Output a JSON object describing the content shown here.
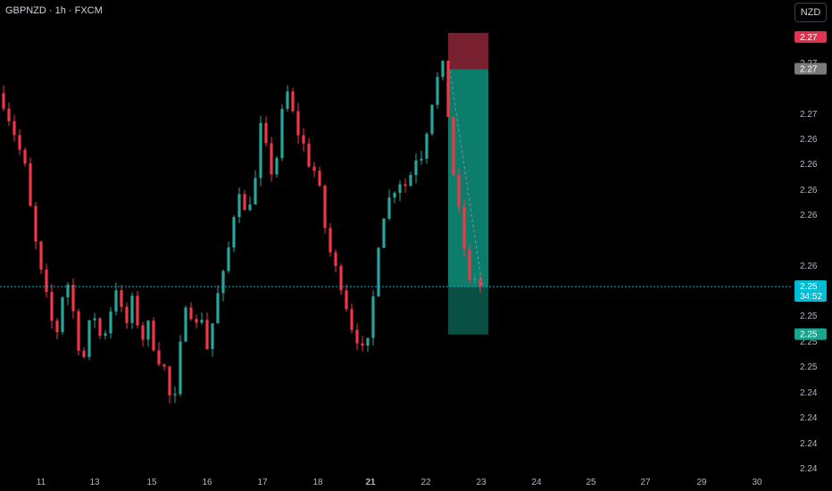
{
  "header": {
    "symbol": "GBPNZD · 1h · FXCM",
    "currency": "NZD"
  },
  "colors": {
    "up": "#26a69a",
    "down": "#f23645",
    "stop_zone": "#78202f",
    "target_zone_light": "#0b7d6a",
    "target_zone_dark": "#0a4f43",
    "price_line": "#00bcd4",
    "stop_badge": "#e0334f",
    "entry_badge": "#7b7b7b",
    "price_badge": "#00bcd4",
    "target_badge": "#17a58c"
  },
  "chart_data": {
    "type": "candlestick",
    "title": "GBPNZD · 1h · FXCM",
    "x_tick_labels": [
      "11",
      "13",
      "15",
      "16",
      "17",
      "18",
      "21",
      "22",
      "23",
      "24",
      "25",
      "27",
      "29",
      "30"
    ],
    "y_tick_labels": [
      "2.27",
      "2.27",
      "2.26",
      "2.26",
      "2.26",
      "2.26",
      "2.26",
      "2.25",
      "2.25",
      "2.25",
      "2.25",
      "2.24",
      "2.24",
      "2.24",
      "2.24"
    ],
    "ylim": [
      2.2392,
      2.2712
    ],
    "grid": false,
    "price_badges": [
      {
        "role": "stop",
        "label": "2.27"
      },
      {
        "role": "entry",
        "label": "2.27"
      },
      {
        "role": "current",
        "label": "2.25",
        "countdown": "34:52"
      },
      {
        "role": "target",
        "label": "2.25"
      }
    ],
    "current_price": 2.2528,
    "position": {
      "side": "short",
      "entry": 2.2682,
      "stop": 2.2702,
      "target": 2.2494
    },
    "close_path": [
      [
        0,
        2.2659
      ],
      [
        2,
        2.2637
      ],
      [
        4,
        2.2612
      ],
      [
        5,
        2.2583
      ],
      [
        6,
        2.2558
      ],
      [
        7,
        2.2537
      ],
      [
        8,
        2.252
      ],
      [
        9,
        2.2503
      ],
      [
        10,
        2.2497
      ],
      [
        11,
        2.2522
      ],
      [
        12,
        2.253
      ],
      [
        13,
        2.251
      ],
      [
        14,
        2.2487
      ],
      [
        15,
        2.2478
      ],
      [
        16,
        2.25
      ],
      [
        17,
        2.2507
      ],
      [
        18,
        2.2493
      ],
      [
        19,
        2.2497
      ],
      [
        20,
        2.2512
      ],
      [
        21,
        2.2528
      ],
      [
        22,
        2.251
      ],
      [
        23,
        2.2502
      ],
      [
        24,
        2.2517
      ],
      [
        25,
        2.2503
      ],
      [
        26,
        2.2492
      ],
      [
        27,
        2.25
      ],
      [
        28,
        2.2487
      ],
      [
        29,
        2.2477
      ],
      [
        30,
        2.247
      ],
      [
        31,
        2.245
      ],
      [
        32,
        2.2448
      ],
      [
        33,
        2.2485
      ],
      [
        34,
        2.2518
      ],
      [
        35,
        2.251
      ],
      [
        36,
        2.25
      ],
      [
        37,
        2.2507
      ],
      [
        38,
        2.2485
      ],
      [
        39,
        2.2502
      ],
      [
        40,
        2.2522
      ],
      [
        41,
        2.2535
      ],
      [
        42,
        2.2555
      ],
      [
        43,
        2.258
      ],
      [
        44,
        2.2598
      ],
      [
        45,
        2.258
      ],
      [
        46,
        2.259
      ],
      [
        47,
        2.2603
      ],
      [
        48,
        2.264
      ],
      [
        49,
        2.2625
      ],
      [
        50,
        2.261
      ],
      [
        51,
        2.262
      ],
      [
        52,
        2.265
      ],
      [
        53,
        2.2665
      ],
      [
        54,
        2.265
      ],
      [
        55,
        2.2637
      ],
      [
        56,
        2.2628
      ],
      [
        57,
        2.2616
      ],
      [
        58,
        2.261
      ],
      [
        59,
        2.2595
      ],
      [
        60,
        2.257
      ],
      [
        61,
        2.2552
      ],
      [
        62,
        2.254
      ],
      [
        63,
        2.253
      ],
      [
        64,
        2.2515
      ],
      [
        65,
        2.25
      ],
      [
        66,
        2.2492
      ],
      [
        67,
        2.2482
      ],
      [
        68,
        2.2487
      ],
      [
        69,
        2.252
      ],
      [
        70,
        2.256
      ],
      [
        71,
        2.258
      ],
      [
        72,
        2.259
      ],
      [
        73,
        2.2598
      ],
      [
        74,
        2.2603
      ],
      [
        75,
        2.26
      ],
      [
        76,
        2.2608
      ],
      [
        77,
        2.262
      ],
      [
        78,
        2.2622
      ],
      [
        79,
        2.264
      ],
      [
        80,
        2.266
      ],
      [
        81,
        2.2675
      ],
      [
        82,
        2.2683
      ],
      [
        83,
        2.265
      ],
      [
        84,
        2.2608
      ],
      [
        85,
        2.258
      ],
      [
        86,
        2.2555
      ],
      [
        87,
        2.253
      ],
      [
        88,
        2.2535
      ],
      [
        89,
        2.2528
      ]
    ]
  }
}
